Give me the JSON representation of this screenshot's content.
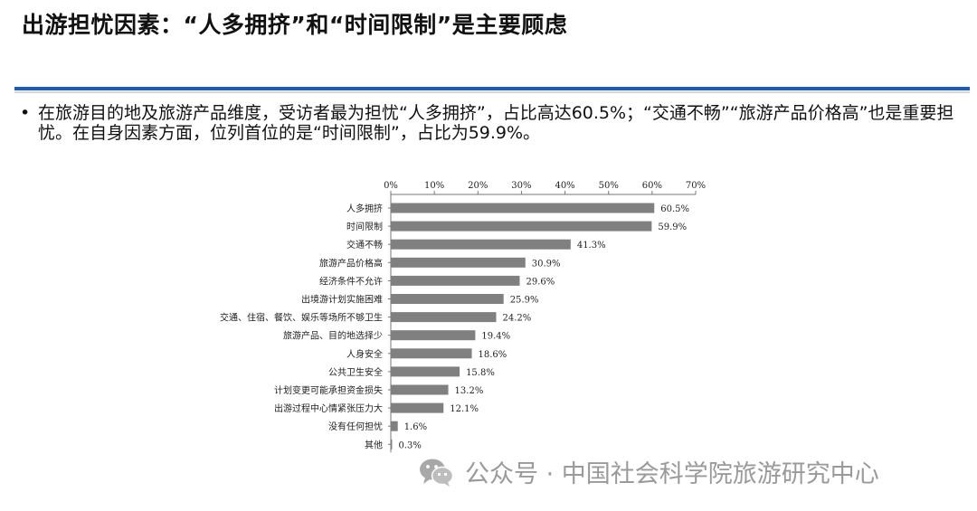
{
  "header": {
    "title": "出游担忧因素：“人多拥挤”和“时间限制”是主要顾虑"
  },
  "summary": {
    "bullet": "•",
    "text": "在旅游目的地及旅游产品维度，受访者最为担忧“人多拥挤”，占比高达60.5%；“交通不畅”“旅游产品价格高”也是重要担忧。在自身因素方面，位列首位的是“时间限制”，占比为59.9%。"
  },
  "chart_data": {
    "type": "bar",
    "orientation": "horizontal",
    "categories": [
      "人多拥挤",
      "时间限制",
      "交通不畅",
      "旅游产品价格高",
      "经济条件不允许",
      "出境游计划实施困难",
      "交通、住宿、餐饮、娱乐等场所不够卫生",
      "旅游产品、目的地选择少",
      "人身安全",
      "公共卫生安全",
      "计划变更可能承担资金损失",
      "出游过程中心情紧张压力大",
      "没有任何担忧",
      "其他"
    ],
    "values": [
      60.5,
      59.9,
      41.3,
      30.9,
      29.6,
      25.9,
      24.2,
      19.4,
      18.6,
      15.8,
      13.2,
      12.1,
      1.6,
      0.3
    ],
    "value_labels": [
      "60.5%",
      "59.9%",
      "41.3%",
      "30.9%",
      "29.6%",
      "25.9%",
      "24.2%",
      "19.4%",
      "18.6%",
      "15.8%",
      "13.2%",
      "12.1%",
      "1.6%",
      "0.3%"
    ],
    "xlim": [
      0,
      70
    ],
    "xticks": [
      0,
      10,
      20,
      30,
      40,
      50,
      60,
      70
    ],
    "xtick_labels": [
      "0%",
      "10%",
      "20%",
      "30%",
      "40%",
      "50%",
      "60%",
      "70%"
    ],
    "axis_position": "top",
    "grid": false,
    "legend": "none",
    "bar_color": "#808080"
  },
  "watermark": {
    "icon": "wechat-icon",
    "text": "公众号 · 中国社会科学院旅游研究中心",
    "color": "#9a9a9a"
  }
}
